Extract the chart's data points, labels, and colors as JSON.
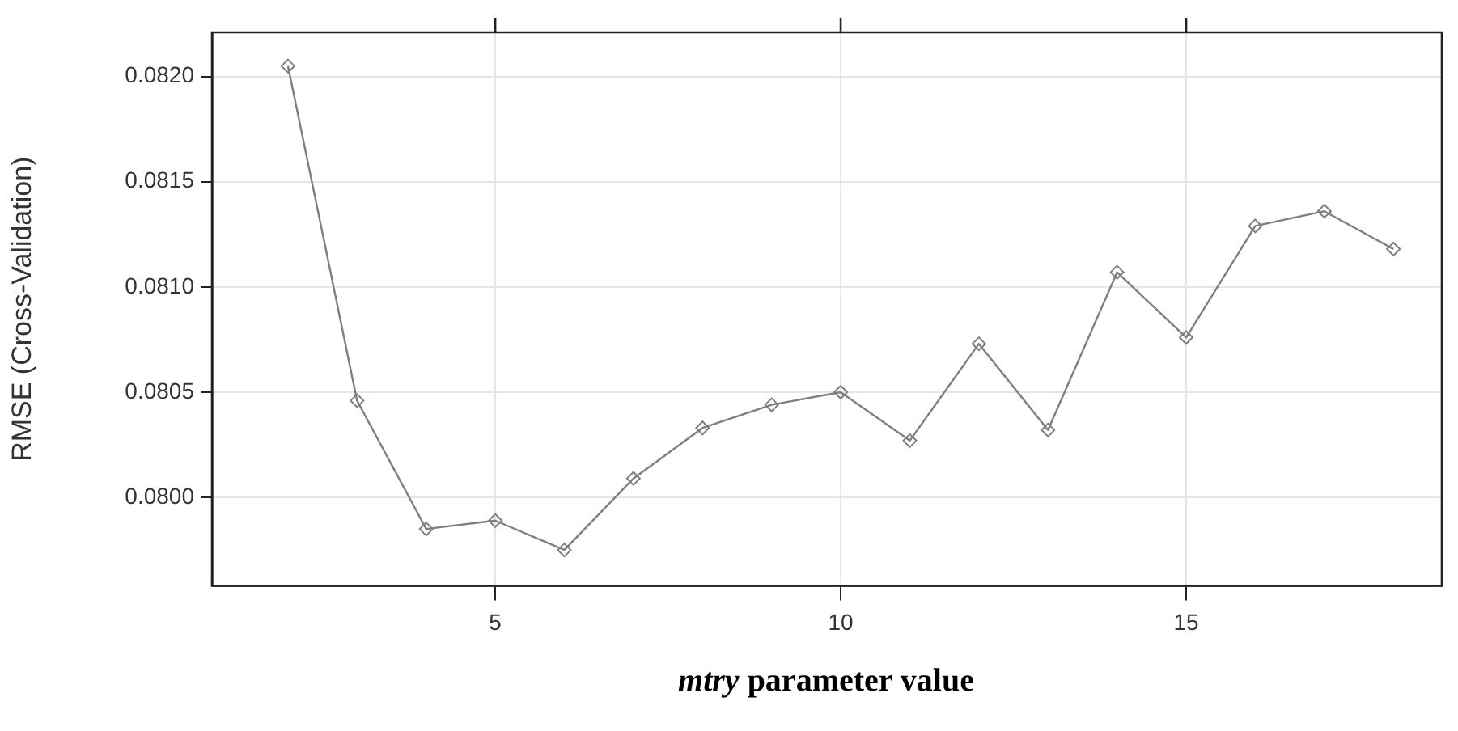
{
  "chart_data": {
    "type": "line",
    "xlabel": "mtry parameter value",
    "ylabel": "RMSE (Cross-Validation)",
    "x": [
      2,
      3,
      4,
      5,
      6,
      7,
      8,
      9,
      10,
      11,
      12,
      13,
      14,
      15,
      16,
      17,
      18
    ],
    "series": [
      {
        "color": "#7f7f7f",
        "values": [
          0.08205,
          0.08046,
          0.07985,
          0.07989,
          0.07975,
          0.08009,
          0.08033,
          0.08044,
          0.0805,
          0.08027,
          0.08073,
          0.08032,
          0.08107,
          0.08076,
          0.08129,
          0.08136,
          0.08118
        ]
      }
    ],
    "xlim": [
      0.9,
      18.7
    ],
    "xticks": [
      5,
      10,
      15
    ],
    "ylim": [
      0.07958,
      0.08221
    ],
    "yticks": [
      {
        "value": 0.08,
        "label": "0.0800"
      },
      {
        "value": 0.0805,
        "label": "0.0805"
      },
      {
        "value": 0.081,
        "label": "0.0810"
      },
      {
        "value": 0.0815,
        "label": "0.0815"
      },
      {
        "value": 0.082,
        "label": "0.0820"
      }
    ],
    "grid": true,
    "legend": false,
    "marker": "diamond",
    "line_style": "solid"
  }
}
